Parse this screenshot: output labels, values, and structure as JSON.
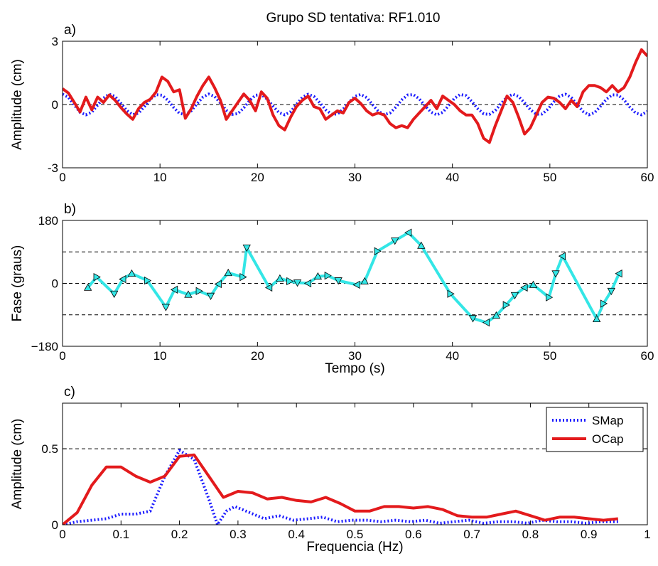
{
  "figure": {
    "title": "Grupo SD   tentativa: RF1.010"
  },
  "chart_data": [
    {
      "panel_label": "a)",
      "type": "line",
      "xlabel": "",
      "ylabel": "Amplitude (cm)",
      "xlim": [
        0,
        60
      ],
      "ylim": [
        -3,
        3
      ],
      "xticks": [
        "0",
        "10",
        "20",
        "30",
        "40",
        "50",
        "60"
      ],
      "yticks": [
        "-3",
        "0",
        "3"
      ],
      "ytick_values": [
        -3,
        0,
        3
      ],
      "hlines": [
        0
      ],
      "series": [
        {
          "color": "#1a1aff",
          "style": "dotted",
          "x": [
            0,
            0.6,
            1.2,
            1.8,
            2.4,
            3,
            3.6,
            4.2,
            4.8,
            5.4,
            6,
            6.6,
            7.2,
            7.8,
            8.4,
            9,
            9.6,
            10.2,
            10.8,
            11.4,
            12,
            12.6,
            13.2,
            13.8,
            14.4,
            15,
            15.6,
            16.2,
            16.8,
            17.4,
            18,
            18.6,
            19.2,
            19.8,
            20.4,
            21,
            21.6,
            22.2,
            22.8,
            23.4,
            24,
            24.6,
            25.2,
            25.8,
            26.4,
            27,
            27.6,
            28.2,
            28.8,
            29.4,
            30,
            30.6,
            31.2,
            31.8,
            32.4,
            33,
            33.6,
            34.2,
            34.8,
            35.4,
            36,
            36.6,
            37.2,
            37.8,
            38.4,
            39,
            39.6,
            40.2,
            40.8,
            41.4,
            42,
            42.6,
            43.2,
            43.8,
            44.4,
            45,
            45.6,
            46.2,
            46.8,
            47.4,
            48,
            48.6,
            49.2,
            49.8,
            50.4,
            51,
            51.6,
            52.2,
            52.8,
            53.4,
            54,
            54.6,
            55.2,
            55.8,
            56.4,
            57,
            57.6,
            58.2,
            58.8,
            59.4,
            60
          ],
          "y": [
            0.49,
            0.34,
            -0.02,
            -0.37,
            -0.49,
            -0.36,
            -0.03,
            0.31,
            0.49,
            0.38,
            0.05,
            -0.29,
            -0.48,
            -0.41,
            -0.1,
            0.25,
            0.47,
            0.44,
            0.2,
            -0.14,
            -0.42,
            -0.48,
            -0.3,
            0.04,
            0.35,
            0.5,
            0.38,
            0.07,
            -0.27,
            -0.47,
            -0.43,
            -0.16,
            0.19,
            0.44,
            0.47,
            0.26,
            -0.08,
            -0.38,
            -0.49,
            -0.34,
            0,
            0.34,
            0.49,
            0.38,
            0.08,
            -0.25,
            -0.46,
            -0.45,
            -0.22,
            0.11,
            0.39,
            0.48,
            0.33,
            0,
            -0.32,
            -0.48,
            -0.4,
            -0.12,
            0.22,
            0.45,
            0.47,
            0.27,
            -0.06,
            -0.36,
            -0.49,
            -0.37,
            -0.05,
            0.29,
            0.48,
            0.42,
            0.14,
            -0.2,
            -0.44,
            -0.47,
            -0.28,
            0.05,
            0.35,
            0.49,
            0.38,
            0.08,
            -0.25,
            -0.46,
            -0.45,
            -0.22,
            0.12,
            0.4,
            0.49,
            0.33,
            0,
            -0.33,
            -0.49,
            -0.38,
            -0.08,
            0.25,
            0.46,
            0.45,
            0.22,
            -0.12,
            -0.4,
            -0.49,
            -0.33
          ]
        },
        {
          "color": "#e31a1c",
          "style": "solid",
          "x": [
            0,
            0.6,
            1.2,
            1.8,
            2.4,
            3,
            3.6,
            4.2,
            4.8,
            5.4,
            6,
            6.6,
            7.2,
            7.8,
            8.4,
            9,
            9.6,
            10.2,
            10.8,
            11.4,
            12,
            12.6,
            13.2,
            13.8,
            14.4,
            15,
            15.6,
            16.2,
            16.8,
            17.4,
            18,
            18.6,
            19.2,
            19.8,
            20.4,
            21,
            21.6,
            22.2,
            22.8,
            23.4,
            24,
            24.6,
            25.2,
            25.8,
            26.4,
            27,
            27.6,
            28.2,
            28.8,
            29.4,
            30,
            30.6,
            31.2,
            31.8,
            32.4,
            33,
            33.6,
            34.2,
            34.8,
            35.4,
            36,
            36.6,
            37.2,
            37.8,
            38.4,
            39,
            39.6,
            40.2,
            40.8,
            41.4,
            42,
            42.6,
            43.2,
            43.8,
            44.4,
            45,
            45.6,
            46.2,
            46.8,
            47.4,
            48,
            48.6,
            49.2,
            49.8,
            50.4,
            51,
            51.6,
            52.2,
            52.8,
            53.4,
            54,
            54.6,
            55.2,
            55.8,
            56.4,
            57,
            57.6,
            58.2,
            58.8,
            59.4,
            60
          ],
          "y": [
            0.75,
            0.55,
            0.1,
            -0.35,
            0.35,
            -0.25,
            0.35,
            0.1,
            0.45,
            0.2,
            -0.15,
            -0.45,
            -0.7,
            -0.2,
            0.1,
            0.25,
            0.6,
            1.3,
            1.1,
            0.6,
            0.7,
            -0.65,
            -0.2,
            0.4,
            0.9,
            1.3,
            0.8,
            0.2,
            -0.7,
            -0.3,
            0.1,
            0.5,
            0.2,
            -0.3,
            0.6,
            0.3,
            -0.5,
            -1.0,
            -1.2,
            -0.6,
            -0.1,
            0.2,
            0.4,
            -0.1,
            -0.2,
            -0.7,
            -0.5,
            -0.3,
            -0.4,
            0.1,
            0.3,
            0.05,
            -0.3,
            -0.5,
            -0.4,
            -0.5,
            -0.9,
            -1.1,
            -1.0,
            -1.1,
            -0.7,
            -0.4,
            -0.1,
            0.2,
            -0.2,
            0.4,
            0.2,
            0.0,
            -0.3,
            -0.5,
            -0.5,
            -0.9,
            -1.6,
            -1.8,
            -1.0,
            -0.3,
            0.4,
            0.1,
            -0.6,
            -1.4,
            -1.1,
            -0.5,
            0.1,
            0.35,
            0.3,
            0.1,
            -0.2,
            0.2,
            -0.1,
            0.6,
            0.9,
            0.9,
            0.8,
            0.6,
            0.9,
            0.6,
            0.8,
            1.3,
            2.0,
            2.6,
            2.3
          ]
        }
      ]
    },
    {
      "panel_label": "b)",
      "type": "line",
      "xlabel": "Tempo (s)",
      "ylabel": "Fase (graus)",
      "xlim": [
        0,
        60
      ],
      "ylim": [
        -180,
        180
      ],
      "xticks": [
        "0",
        "10",
        "20",
        "30",
        "40",
        "50",
        "60"
      ],
      "yticks": [
        "−180",
        "0",
        "180"
      ],
      "ytick_values": [
        -180,
        0,
        180
      ],
      "hlines": [
        -90,
        0,
        90
      ],
      "series": [
        {
          "color": "#33e6e6",
          "style": "solid",
          "marker": "triangle",
          "x": [
            2.6,
            3.5,
            5.3,
            6.2,
            7.1,
            8.7,
            10.6,
            11.5,
            12.9,
            14.0,
            15.2,
            16.0,
            17.0,
            18.5,
            18.9,
            21.2,
            22.3,
            23.3,
            24.1,
            25.2,
            26.2,
            27.2,
            28.3,
            30.2,
            31.0,
            32.3,
            34.1,
            35.5,
            36.8,
            39.8,
            42.1,
            43.5,
            44.5,
            45.5,
            46.4,
            47.4,
            48.3,
            49.9,
            50.6,
            51.3,
            54.8,
            55.5,
            56.3,
            57.1
          ],
          "y": [
            -12,
            18,
            -30,
            12,
            28,
            8,
            -68,
            -18,
            -32,
            -22,
            -36,
            -2,
            30,
            18,
            102,
            -12,
            14,
            6,
            2,
            0,
            20,
            22,
            8,
            -4,
            6,
            92,
            122,
            145,
            108,
            -30,
            -100,
            -112,
            -92,
            -62,
            -34,
            -12,
            -4,
            -40,
            28,
            78,
            -102,
            -58,
            -22,
            28
          ]
        }
      ]
    },
    {
      "panel_label": "c)",
      "type": "line",
      "xlabel": "Frequencia (Hz)",
      "ylabel": "Amplitude (cm)",
      "xlim": [
        0,
        1
      ],
      "ylim": [
        0,
        0.8
      ],
      "xticks": [
        "0",
        "0.1",
        "0.2",
        "0.3",
        "0.4",
        "0.5",
        "0.6",
        "0.7",
        "0.8",
        "0.9",
        "1"
      ],
      "yticks": [
        "0",
        "0.5"
      ],
      "ytick_values": [
        0,
        0.5
      ],
      "hlines": [
        0.5
      ],
      "legend_position": "top-right",
      "series": [
        {
          "name": "SMap",
          "color": "#1a1aff",
          "style": "dotted",
          "x": [
            0,
            0.025,
            0.05,
            0.075,
            0.1,
            0.125,
            0.15,
            0.175,
            0.2,
            0.225,
            0.25,
            0.265,
            0.28,
            0.295,
            0.32,
            0.345,
            0.37,
            0.395,
            0.42,
            0.445,
            0.47,
            0.495,
            0.52,
            0.545,
            0.57,
            0.595,
            0.62,
            0.645,
            0.67,
            0.695,
            0.72,
            0.745,
            0.77,
            0.795,
            0.82,
            0.845,
            0.87,
            0.895,
            0.92,
            0.95
          ],
          "y": [
            0,
            0.02,
            0.03,
            0.04,
            0.07,
            0.07,
            0.09,
            0.32,
            0.49,
            0.43,
            0.17,
            0.0,
            0.09,
            0.12,
            0.08,
            0.04,
            0.06,
            0.03,
            0.04,
            0.05,
            0.02,
            0.03,
            0.03,
            0.02,
            0.03,
            0.02,
            0.03,
            0.01,
            0.02,
            0.03,
            0.01,
            0.02,
            0.02,
            0.01,
            0.03,
            0.02,
            0.02,
            0.01,
            0.02,
            0.02
          ]
        },
        {
          "name": "OCap",
          "color": "#e31a1c",
          "style": "solid",
          "x": [
            0,
            0.025,
            0.05,
            0.075,
            0.1,
            0.125,
            0.15,
            0.175,
            0.2,
            0.225,
            0.25,
            0.275,
            0.3,
            0.325,
            0.35,
            0.375,
            0.4,
            0.425,
            0.45,
            0.475,
            0.5,
            0.525,
            0.55,
            0.575,
            0.6,
            0.625,
            0.65,
            0.675,
            0.7,
            0.725,
            0.75,
            0.775,
            0.8,
            0.825,
            0.85,
            0.875,
            0.9,
            0.925,
            0.95
          ],
          "y": [
            0,
            0.08,
            0.26,
            0.38,
            0.38,
            0.32,
            0.28,
            0.32,
            0.45,
            0.46,
            0.32,
            0.18,
            0.22,
            0.21,
            0.17,
            0.18,
            0.16,
            0.15,
            0.18,
            0.14,
            0.09,
            0.09,
            0.12,
            0.12,
            0.11,
            0.12,
            0.1,
            0.06,
            0.05,
            0.05,
            0.07,
            0.09,
            0.06,
            0.03,
            0.05,
            0.05,
            0.04,
            0.03,
            0.04
          ]
        }
      ]
    }
  ]
}
